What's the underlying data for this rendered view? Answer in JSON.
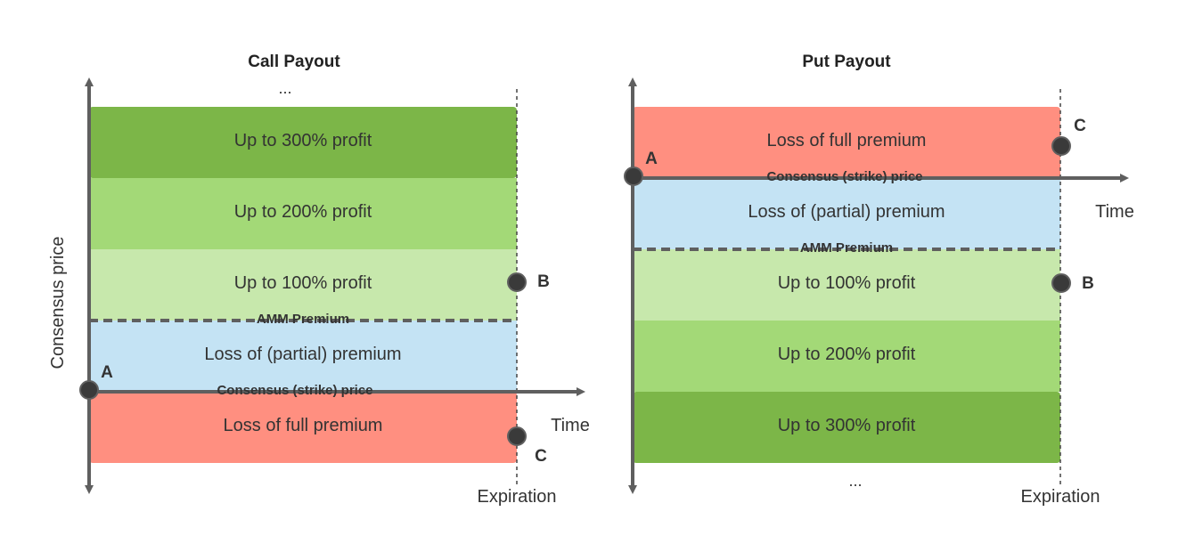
{
  "colors": {
    "dark_green": "#7cb648",
    "mid_green": "#a3d977",
    "light_green": "#c7e8ac",
    "blue": "#c4e3f4",
    "red": "#ff8f80",
    "axis": "#5f5f5f",
    "point": "#3a3a3a"
  },
  "call": {
    "title": "Call Payout",
    "ellipsis": "...",
    "bands": {
      "profit_300": "Up to 300% profit",
      "profit_200": "Up to 200% profit",
      "profit_100": "Up to 100% profit",
      "partial_loss": "Loss of (partial) premium",
      "full_loss": "Loss of full premium"
    },
    "amm_premium_label": "AMM Premium",
    "strike_label": "Consensus (strike) price",
    "y_axis_label": "Consensus price",
    "x_axis_label": "Time",
    "expiration_label": "Expiration",
    "point_a": "A",
    "point_b": "B",
    "point_c": "C"
  },
  "put": {
    "title": "Put Payout",
    "ellipsis": "...",
    "bands": {
      "full_loss": "Loss of full premium",
      "partial_loss": "Loss of (partial) premium",
      "profit_100": "Up to 100% profit",
      "profit_200": "Up to 200% profit",
      "profit_300": "Up to 300% profit"
    },
    "amm_premium_label": "AMM Premium",
    "strike_label": "Consensus (strike) price",
    "x_axis_label": "Time",
    "expiration_label": "Expiration",
    "point_a": "A",
    "point_b": "B",
    "point_c": "C"
  }
}
